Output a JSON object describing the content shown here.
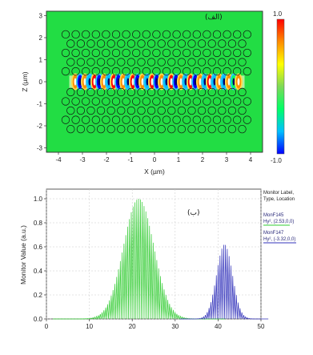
{
  "chart_data": [
    {
      "type": "heatmap",
      "panel_label": "(الف)",
      "xlabel": "X (µm)",
      "ylabel": "Z (µm)",
      "xlim": [
        -4.5,
        4.5
      ],
      "ylim": [
        -3.2,
        3.2
      ],
      "xticks": [
        -4,
        -3,
        -2,
        -1,
        0,
        1,
        2,
        3,
        4
      ],
      "yticks": [
        -3,
        -2,
        -1,
        0,
        1,
        2,
        3
      ],
      "colorbar": {
        "min": -1.0,
        "max": 1.0,
        "max_label": "1.0",
        "min_label": "-1.0",
        "colors": [
          "#0000ff",
          "#00bfff",
          "#00ff66",
          "#7ed957",
          "#ffff00",
          "#ff8c00",
          "#ff0000"
        ]
      },
      "lattice": {
        "lattice_constant": 0.42,
        "rod_radius": 0.16,
        "rows_above": 5,
        "rows_below": 5,
        "columns": 19
      },
      "waveguide_field": {
        "x": [
          -3.3,
          -3.1,
          -2.9,
          -2.7,
          -2.5,
          -2.3,
          -2.1,
          -1.9,
          -1.7,
          -1.5,
          -1.3,
          -1.1,
          -0.9,
          -0.7,
          -0.5,
          -0.3,
          -0.1,
          0.1,
          0.3,
          0.5,
          0.7,
          0.9,
          1.1,
          1.3,
          1.5,
          1.7,
          1.9,
          2.1,
          2.3,
          2.5,
          2.7,
          2.9,
          3.1,
          3.3,
          3.5
        ],
        "value": [
          0.7,
          -0.9,
          0.8,
          -0.6,
          0.9,
          -1.0,
          0.8,
          -0.7,
          0.9,
          -1.0,
          0.7,
          -0.8,
          1.0,
          -0.9,
          0.8,
          -0.7,
          0.9,
          -1.0,
          0.8,
          -0.6,
          1.0,
          -0.9,
          0.7,
          -0.8,
          0.9,
          -1.0,
          0.8,
          -0.7,
          0.9,
          -0.8,
          0.7,
          -0.6,
          0.8,
          -0.5,
          0.6
        ]
      }
    },
    {
      "type": "line",
      "panel_label": "(ب)",
      "xlabel": "",
      "ylabel": "Monitor Value (a.u.)",
      "xlim": [
        0,
        50
      ],
      "ylim": [
        0,
        1.08
      ],
      "xticks": [
        0,
        10,
        20,
        30,
        40,
        50
      ],
      "yticks": [
        0.0,
        0.2,
        0.4,
        0.6,
        0.8,
        1.0
      ],
      "ytick_labels": [
        "0.0",
        "0.2",
        "0.4",
        "0.6",
        "0.8",
        "1.0"
      ],
      "legend": {
        "title": [
          "Monitor Label,",
          "Type, Location"
        ],
        "placement": "right"
      },
      "series": [
        {
          "name": "MonF145",
          "label_line2": "Hy², (2.53,0,0)",
          "color": "#33cc33",
          "center": 21.5,
          "width": 5.0,
          "peak": 1.0,
          "period": 0.85
        },
        {
          "name": "MonF147",
          "label_line2": "Hy², (-3.32,0,0)",
          "color": "#3333bb",
          "center": 41.5,
          "width": 2.6,
          "peak": 0.62,
          "period": 0.85
        }
      ]
    }
  ]
}
